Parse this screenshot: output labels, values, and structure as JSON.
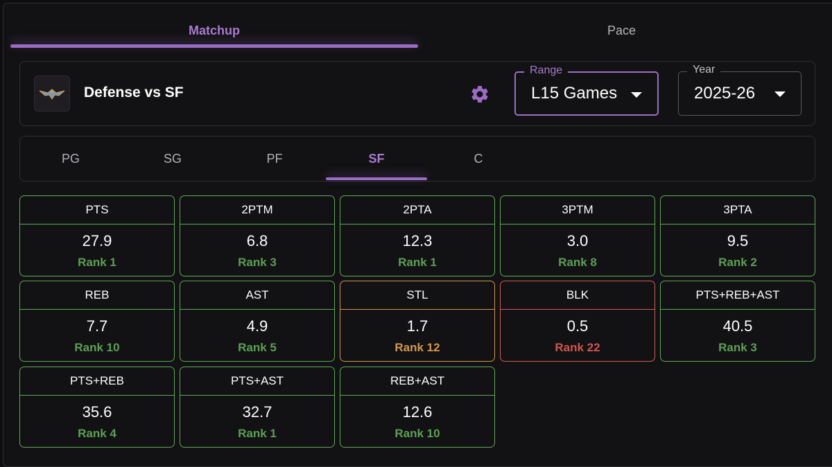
{
  "tabs": [
    {
      "label": "Matchup",
      "active": true
    },
    {
      "label": "Pace",
      "active": false
    }
  ],
  "header": {
    "logo_icon": "pelicans-logo",
    "title": "Defense vs SF",
    "settings_icon": "gear-icon",
    "range": {
      "label": "Range",
      "value": "L15 Games"
    },
    "year": {
      "label": "Year",
      "value": "2025-26"
    }
  },
  "positions": [
    {
      "label": "PG",
      "active": false
    },
    {
      "label": "SG",
      "active": false
    },
    {
      "label": "PF",
      "active": false
    },
    {
      "label": "SF",
      "active": true
    },
    {
      "label": "C",
      "active": false
    }
  ],
  "colors": {
    "accent": "#9a6cc4",
    "good": "#5faa57",
    "neutral": "#d29a4d",
    "bad": "#d35b55"
  },
  "stats": [
    {
      "label": "PTS",
      "value": "27.9",
      "rank": "Rank 1",
      "tier": "green"
    },
    {
      "label": "2PTM",
      "value": "6.8",
      "rank": "Rank 3",
      "tier": "green"
    },
    {
      "label": "2PTA",
      "value": "12.3",
      "rank": "Rank 1",
      "tier": "green"
    },
    {
      "label": "3PTM",
      "value": "3.0",
      "rank": "Rank 8",
      "tier": "green"
    },
    {
      "label": "3PTA",
      "value": "9.5",
      "rank": "Rank 2",
      "tier": "green"
    },
    {
      "label": "REB",
      "value": "7.7",
      "rank": "Rank 10",
      "tier": "green"
    },
    {
      "label": "AST",
      "value": "4.9",
      "rank": "Rank 5",
      "tier": "green"
    },
    {
      "label": "STL",
      "value": "1.7",
      "rank": "Rank 12",
      "tier": "orange"
    },
    {
      "label": "BLK",
      "value": "0.5",
      "rank": "Rank 22",
      "tier": "red"
    },
    {
      "label": "PTS+REB+AST",
      "value": "40.5",
      "rank": "Rank 3",
      "tier": "green"
    },
    {
      "label": "PTS+REB",
      "value": "35.6",
      "rank": "Rank 4",
      "tier": "green"
    },
    {
      "label": "PTS+AST",
      "value": "32.7",
      "rank": "Rank 1",
      "tier": "green"
    },
    {
      "label": "REB+AST",
      "value": "12.6",
      "rank": "Rank 10",
      "tier": "green"
    }
  ]
}
